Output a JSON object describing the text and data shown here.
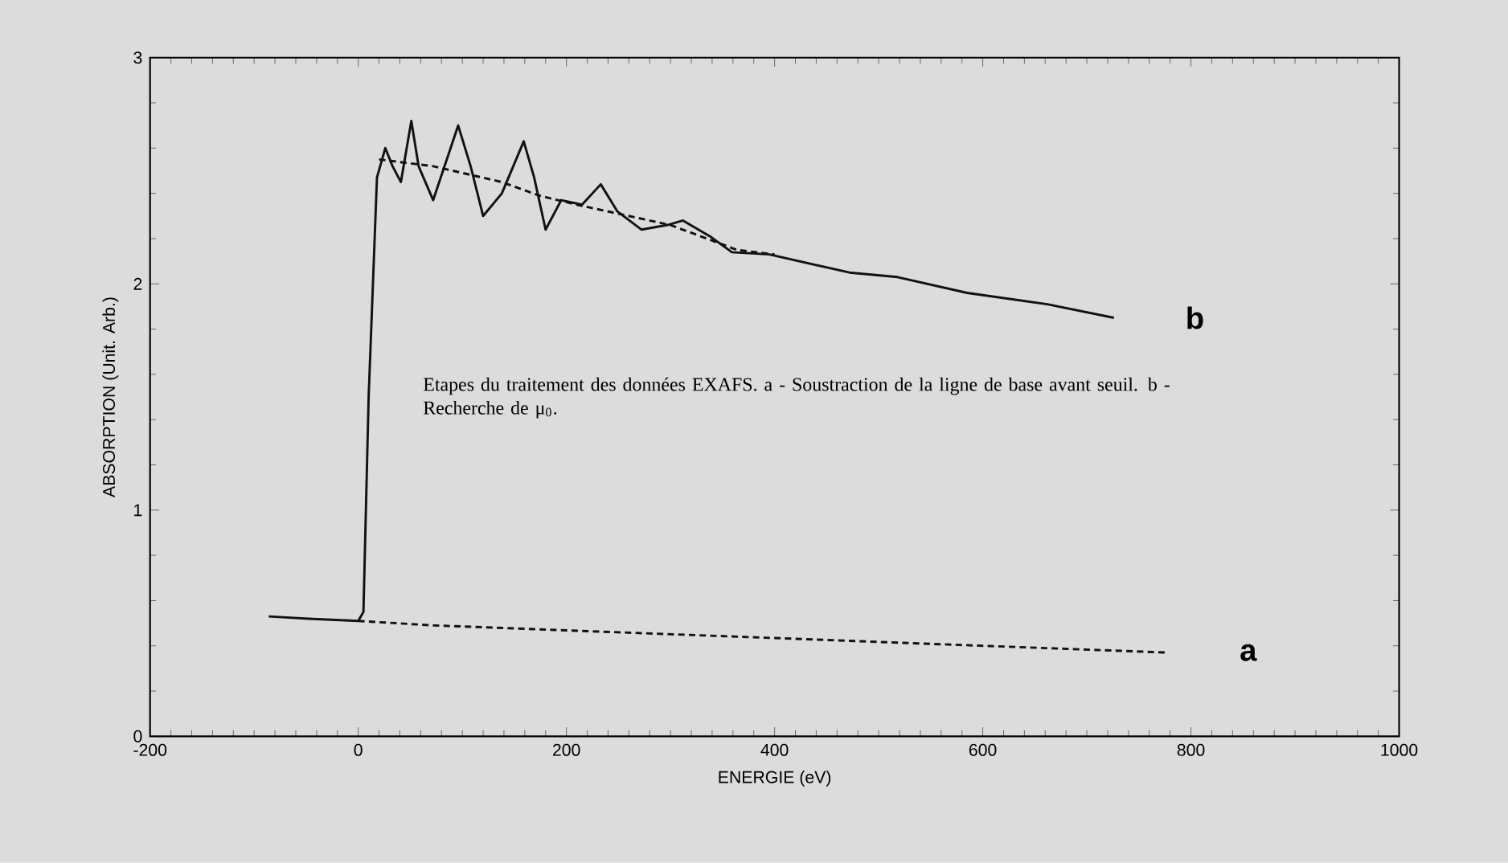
{
  "chart_data": {
    "type": "line",
    "xlabel": "ENERGIE (eV)",
    "ylabel": "ABSORPTION (Unit. Arb.)",
    "xlim": [
      -200,
      1000
    ],
    "xticks": [
      -200,
      0,
      200,
      400,
      600,
      800,
      1000
    ],
    "ylim": [
      0,
      3
    ],
    "yticks": [
      0,
      1,
      2,
      3
    ],
    "marker": "none",
    "series": [
      {
        "name": "b",
        "color": "#111111",
        "line_style": "solid",
        "x": [
          -86,
          -48,
          0,
          5,
          10,
          18,
          26,
          33,
          41,
          51,
          58,
          72,
          96,
          108,
          120,
          138,
          159,
          169,
          180,
          195,
          215,
          233,
          249,
          272,
          297,
          312,
          338,
          359,
          395,
          472,
          518,
          585,
          662,
          726
        ],
        "values": [
          0.53,
          0.52,
          0.51,
          0.55,
          1.5,
          2.47,
          2.6,
          2.52,
          2.45,
          2.72,
          2.52,
          2.37,
          2.7,
          2.52,
          2.3,
          2.4,
          2.63,
          2.47,
          2.24,
          2.37,
          2.35,
          2.44,
          2.32,
          2.24,
          2.26,
          2.28,
          2.21,
          2.14,
          2.13,
          2.05,
          2.03,
          1.96,
          1.91,
          1.85
        ]
      },
      {
        "color": "#111111",
        "line_style": "dashed",
        "x": [
          20,
          72,
          138,
          174,
          210,
          260,
          300,
          364,
          400
        ],
        "values": [
          2.55,
          2.52,
          2.45,
          2.39,
          2.35,
          2.3,
          2.26,
          2.15,
          2.13
        ]
      },
      {
        "name": "a",
        "color": "#111111",
        "line_style": "dashed",
        "x": [
          0,
          74,
          778
        ],
        "values": [
          0.51,
          0.49,
          0.37
        ]
      }
    ],
    "annotations": [
      "Etapes du traitement des données EXAFS. a - Soustraction de la ligne de base avant seuil. b - Recherche de μ$_{0}$."
    ]
  }
}
